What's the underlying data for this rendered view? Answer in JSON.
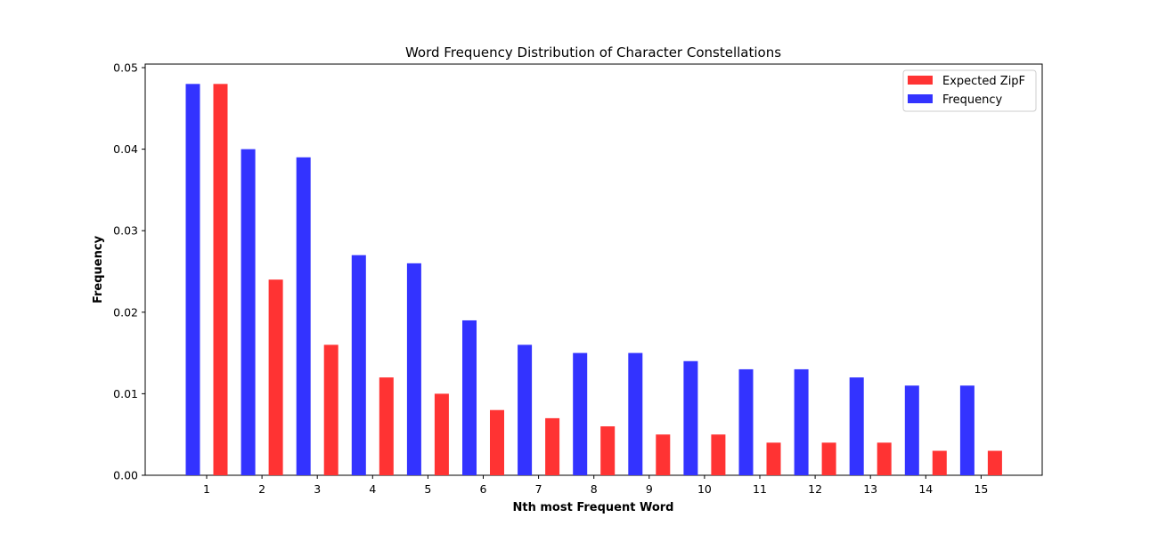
{
  "chart_data": {
    "type": "bar",
    "title": "Word Frequency Distribution of Character Constellations",
    "xlabel": "Nth most Frequent Word",
    "ylabel": "Frequency",
    "categories": [
      "1",
      "2",
      "3",
      "4",
      "5",
      "6",
      "7",
      "8",
      "9",
      "10",
      "11",
      "12",
      "13",
      "14",
      "15"
    ],
    "ylim": [
      0,
      0.05
    ],
    "yticks": [
      "0.00",
      "0.01",
      "0.02",
      "0.03",
      "0.04",
      "0.05"
    ],
    "ytick_values": [
      0,
      0.01,
      0.02,
      0.03,
      0.04,
      0.05
    ],
    "legend_position": "top-right",
    "grid": false,
    "series": [
      {
        "name": "Frequency",
        "color": "#3333ff",
        "values": [
          0.048,
          0.04,
          0.039,
          0.027,
          0.026,
          0.019,
          0.016,
          0.015,
          0.015,
          0.014,
          0.013,
          0.013,
          0.012,
          0.011,
          0.011
        ]
      },
      {
        "name": "Expected ZipF",
        "color": "#ff3333",
        "values": [
          0.048,
          0.024,
          0.016,
          0.012,
          0.01,
          0.008,
          0.007,
          0.006,
          0.005,
          0.005,
          0.004,
          0.004,
          0.004,
          0.003,
          0.003
        ]
      }
    ],
    "legend_order": [
      "Expected ZipF",
      "Frequency"
    ]
  }
}
